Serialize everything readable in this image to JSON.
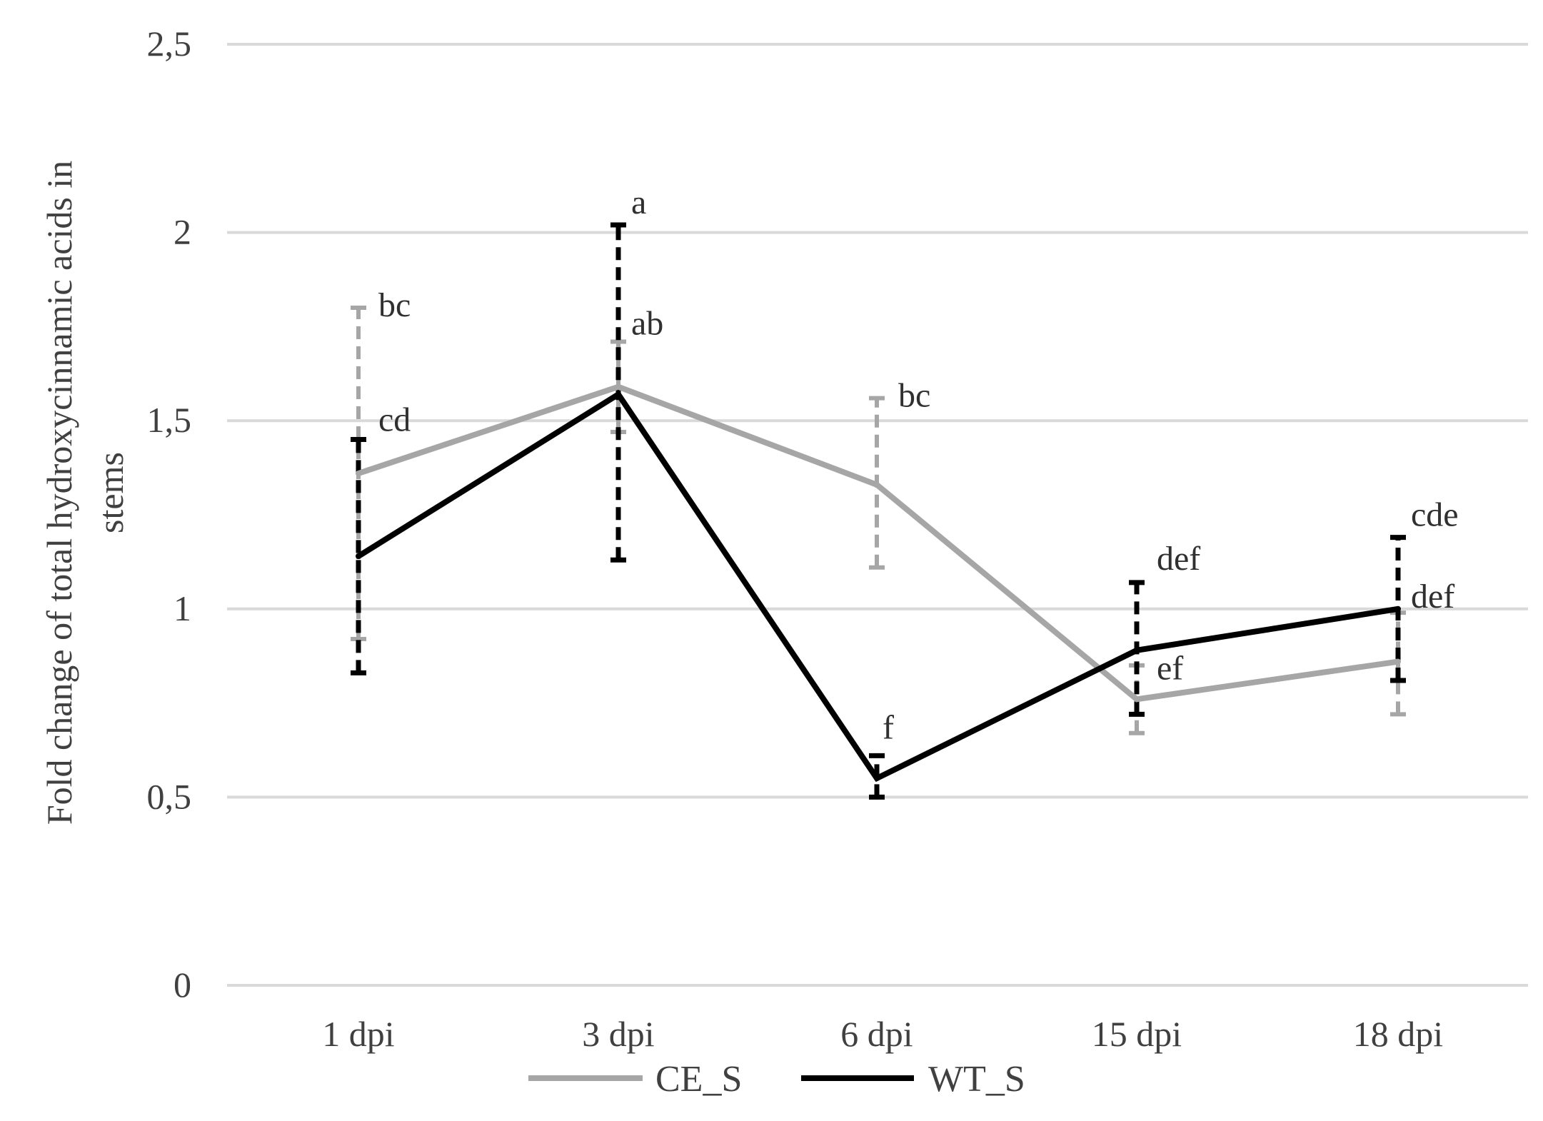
{
  "chart_data": {
    "type": "line",
    "title": "",
    "xlabel": "",
    "ylabel_lines": [
      "Fold change of total hydroxycinnamic acids in",
      "stems"
    ],
    "categories": [
      "1 dpi",
      "3 dpi",
      "6 dpi",
      "15 dpi",
      "18 dpi"
    ],
    "ylim": [
      0,
      2.5
    ],
    "yticks": [
      0,
      0.5,
      1,
      1.5,
      2,
      2.5
    ],
    "ytick_labels": [
      "0",
      "0,5",
      "1",
      "1,5",
      "2",
      "2,5"
    ],
    "grid": true,
    "legend_position": "bottom",
    "series": [
      {
        "name": "CE_S",
        "color": "#a6a6a6",
        "values": [
          1.36,
          1.59,
          1.33,
          0.76,
          0.86
        ],
        "err_low": [
          0.92,
          1.47,
          1.11,
          0.67,
          0.72
        ],
        "err_high": [
          1.8,
          1.71,
          1.56,
          0.85,
          0.99
        ],
        "sig_letters": [
          "bc",
          "ab",
          "bc",
          "ef",
          ""
        ]
      },
      {
        "name": "WT_S",
        "color": "#000000",
        "values": [
          1.14,
          1.57,
          0.55,
          0.89,
          1.0
        ],
        "err_low": [
          0.83,
          1.13,
          0.5,
          0.72,
          0.81
        ],
        "err_high": [
          1.45,
          2.02,
          0.61,
          1.07,
          1.19
        ],
        "sig_letters": [
          "cd",
          "a",
          "f",
          "def",
          "def"
        ]
      }
    ],
    "extra_labels": [
      {
        "category": "18 dpi",
        "text": "cde"
      }
    ]
  }
}
